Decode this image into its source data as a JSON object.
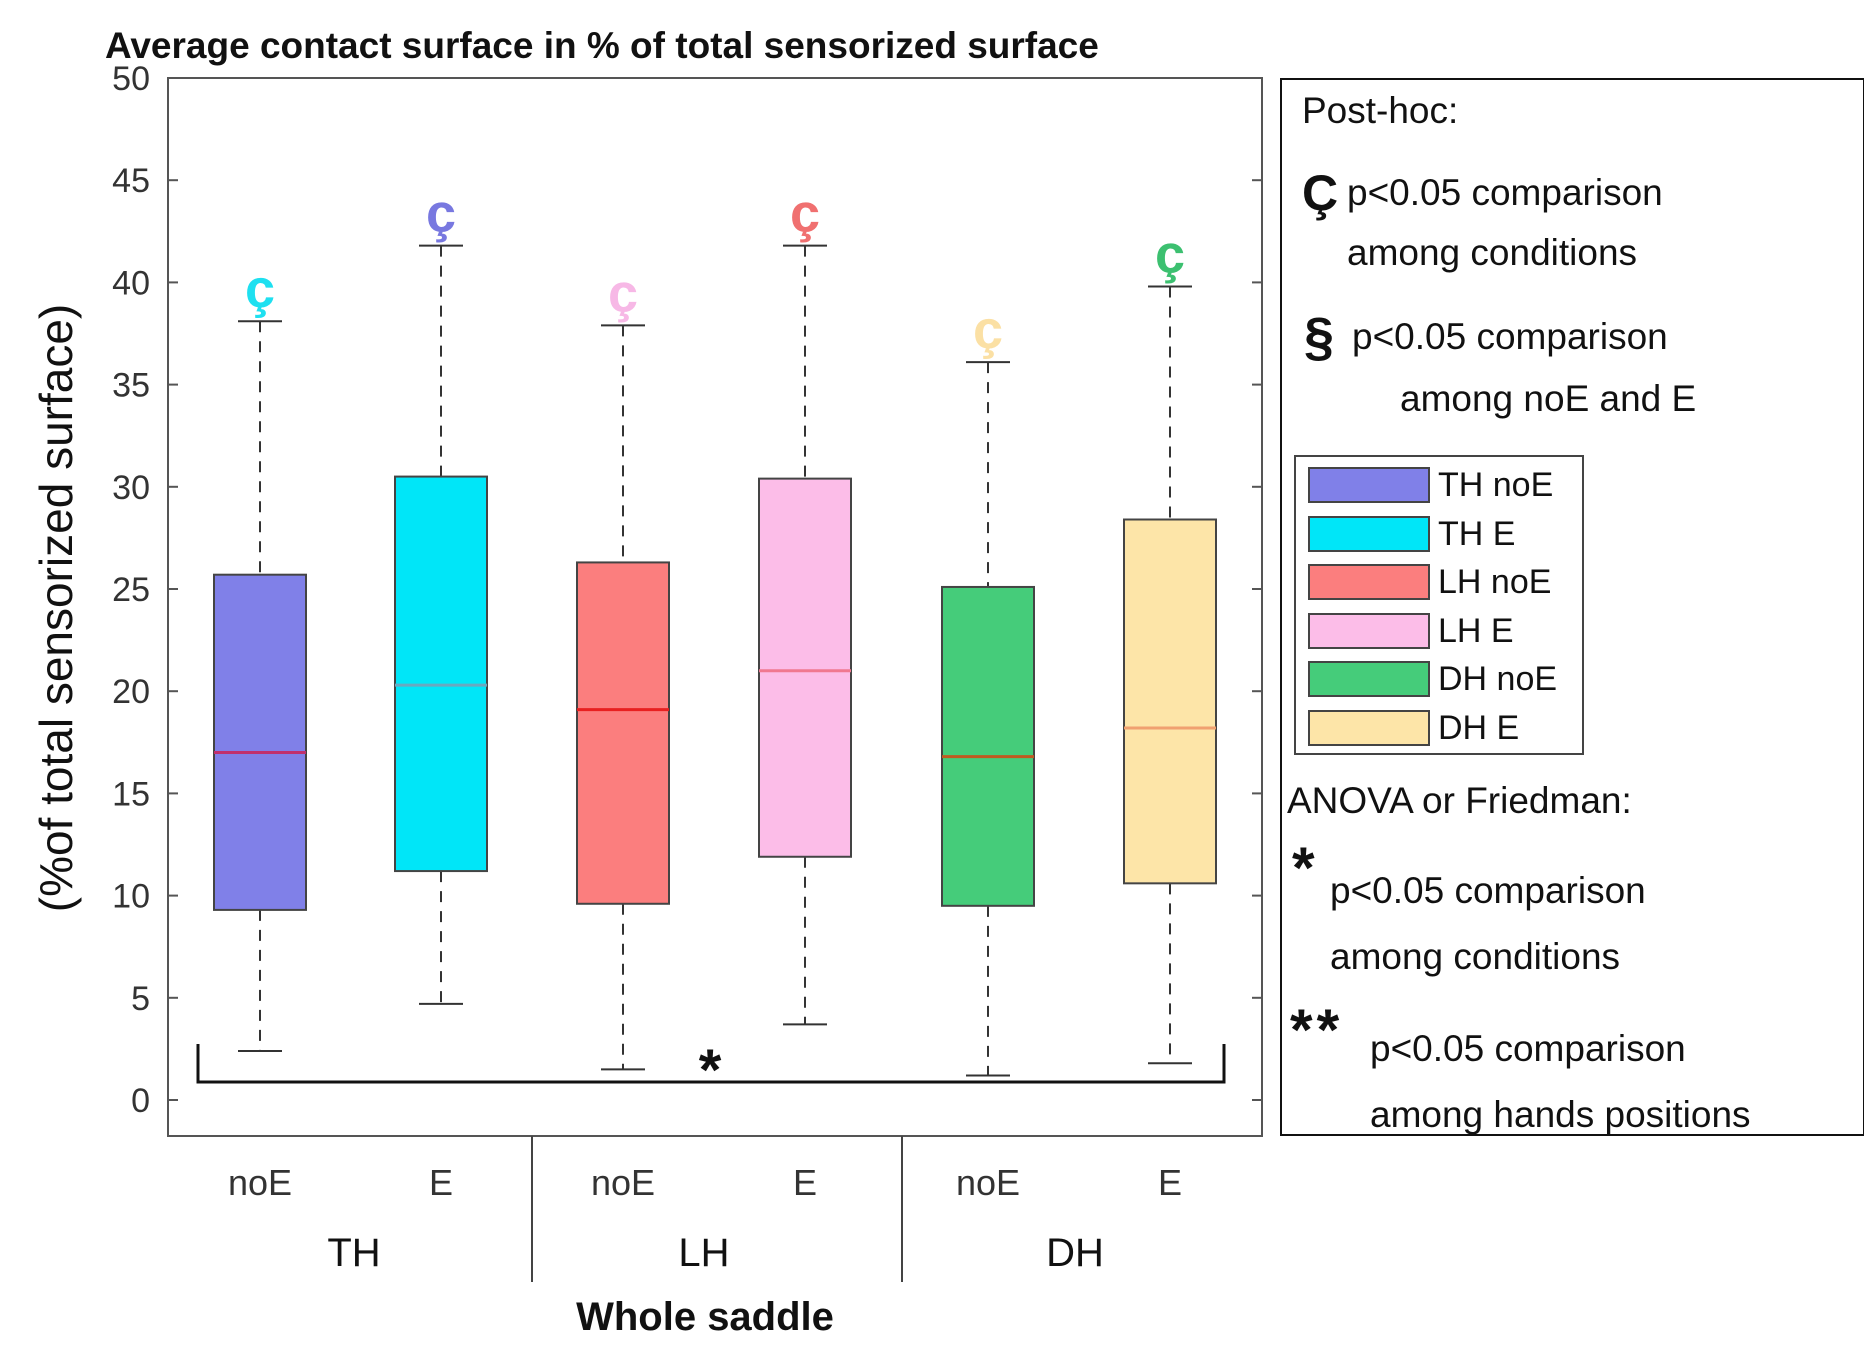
{
  "chart_data": {
    "type": "boxplot",
    "title": "Average contact surface in % of total sensorized surface",
    "ylabel": "(%of total sensorized surface)",
    "xlabel": "Whole saddle",
    "ylim": [
      0,
      50
    ],
    "yticks": [
      0,
      5,
      10,
      15,
      20,
      25,
      30,
      35,
      40,
      45,
      50
    ],
    "groups": [
      "TH",
      "LH",
      "DH"
    ],
    "categories": [
      "noE",
      "E",
      "noE",
      "E",
      "noE",
      "E"
    ],
    "series": [
      {
        "name": "TH noE",
        "group": "TH",
        "category": "noE",
        "color": "#8080e8",
        "median_color": "#c0306e",
        "whisker_low": 2.4,
        "q1": 9.3,
        "median": 17.0,
        "q3": 25.7,
        "whisker_high": 38.1,
        "posthoc_marker": "ç",
        "marker_color": "#1ee0f0"
      },
      {
        "name": "TH E",
        "group": "TH",
        "category": "E",
        "color": "#00e6f8",
        "median_color": "#6aa8c0",
        "whisker_low": 4.7,
        "q1": 11.2,
        "median": 20.3,
        "q3": 30.5,
        "whisker_high": 41.8,
        "posthoc_marker": "ç",
        "marker_color": "#7878e0"
      },
      {
        "name": "LH noE",
        "group": "LH",
        "category": "noE",
        "color": "#fb7e7e",
        "median_color": "#e82020",
        "whisker_low": 1.5,
        "q1": 9.6,
        "median": 19.1,
        "q3": 26.3,
        "whisker_high": 37.9,
        "posthoc_marker": "ç",
        "marker_color": "#f7b8e6"
      },
      {
        "name": "LH E",
        "group": "LH",
        "category": "E",
        "color": "#fcbde8",
        "median_color": "#f07890",
        "whisker_low": 3.7,
        "q1": 11.9,
        "median": 21.0,
        "q3": 30.4,
        "whisker_high": 41.8,
        "posthoc_marker": "ç",
        "marker_color": "#f07070"
      },
      {
        "name": "DH noE",
        "group": "DH",
        "category": "noE",
        "color": "#45cc7a",
        "median_color": "#c05a20",
        "whisker_low": 1.2,
        "q1": 9.5,
        "median": 16.8,
        "q3": 25.1,
        "whisker_high": 36.1,
        "posthoc_marker": "ç",
        "marker_color": "#fbe0a4"
      },
      {
        "name": "DH E",
        "group": "DH",
        "category": "E",
        "color": "#fde5a8",
        "median_color": "#f0a070",
        "whisker_low": 1.8,
        "q1": 10.6,
        "median": 18.2,
        "q3": 28.4,
        "whisker_high": 39.8,
        "posthoc_marker": "ç",
        "marker_color": "#3cc070"
      }
    ],
    "significance": {
      "symbol": "*",
      "bracket_from": "TH noE",
      "bracket_to": "DH E"
    }
  },
  "legend": {
    "posthoc_title": "Post-hoc:",
    "cedilla_symbol": "Ç",
    "cedilla_line1": "p<0.05 comparison",
    "cedilla_line2": "among conditions",
    "section_symbol": "§",
    "section_line1": "p<0.05 comparison",
    "section_line2": "among noE and E",
    "anova_title": "ANOVA or Friedman:",
    "star_symbol": "*",
    "star_line1": "p<0.05 comparison",
    "star_line2": "among conditions",
    "double_star_symbol": "**",
    "double_star_line1": "p<0.05 comparison",
    "double_star_line2": "among hands positions"
  }
}
